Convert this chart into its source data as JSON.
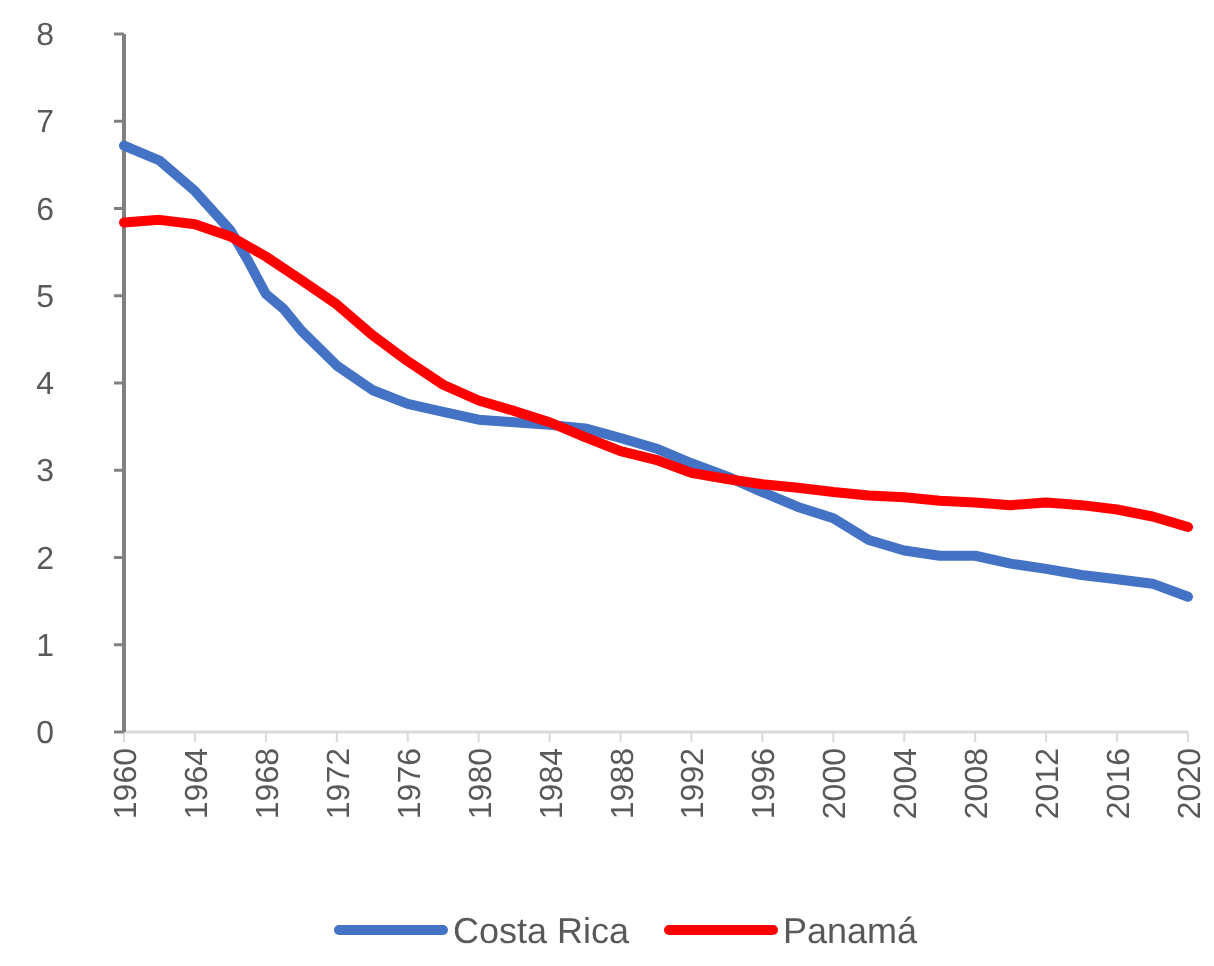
{
  "chart_data": {
    "type": "line",
    "legend": "bottom",
    "grid": false,
    "xlim": [
      1960,
      2020
    ],
    "xticks": [
      1960,
      1964,
      1968,
      1972,
      1976,
      1980,
      1984,
      1988,
      1992,
      1996,
      2000,
      2004,
      2008,
      2012,
      2016,
      2020
    ],
    "ylim": [
      0,
      8
    ],
    "yticks": [
      0,
      1,
      2,
      3,
      4,
      5,
      6,
      7,
      8
    ],
    "series": [
      {
        "name": "Costa Rica",
        "color": "#4472c4",
        "x": [
          1960,
          1962,
          1964,
          1966,
          1967,
          1968,
          1969,
          1970,
          1972,
          1974,
          1976,
          1978,
          1980,
          1982,
          1984,
          1986,
          1988,
          1990,
          1992,
          1994,
          1996,
          1998,
          2000,
          2002,
          2004,
          2006,
          2008,
          2010,
          2012,
          2014,
          2016,
          2018,
          2020
        ],
        "values": [
          6.72,
          6.55,
          6.2,
          5.75,
          5.4,
          5.02,
          4.85,
          4.6,
          4.2,
          3.92,
          3.76,
          3.67,
          3.58,
          3.55,
          3.52,
          3.48,
          3.37,
          3.25,
          3.08,
          2.93,
          2.75,
          2.58,
          2.45,
          2.2,
          2.08,
          2.02,
          2.02,
          1.93,
          1.87,
          1.8,
          1.75,
          1.7,
          1.55
        ]
      },
      {
        "name": "Panamá",
        "color": "#ff0000",
        "x": [
          1960,
          1962,
          1964,
          1966,
          1968,
          1970,
          1972,
          1974,
          1976,
          1978,
          1980,
          1982,
          1984,
          1986,
          1988,
          1990,
          1992,
          1994,
          1996,
          1998,
          2000,
          2002,
          2004,
          2006,
          2008,
          2010,
          2012,
          2014,
          2016,
          2018,
          2020
        ],
        "values": [
          5.84,
          5.87,
          5.82,
          5.68,
          5.45,
          5.18,
          4.9,
          4.55,
          4.25,
          3.98,
          3.8,
          3.68,
          3.55,
          3.38,
          3.22,
          3.12,
          2.97,
          2.9,
          2.84,
          2.8,
          2.75,
          2.71,
          2.69,
          2.65,
          2.63,
          2.6,
          2.63,
          2.6,
          2.55,
          2.47,
          2.35
        ]
      }
    ]
  }
}
